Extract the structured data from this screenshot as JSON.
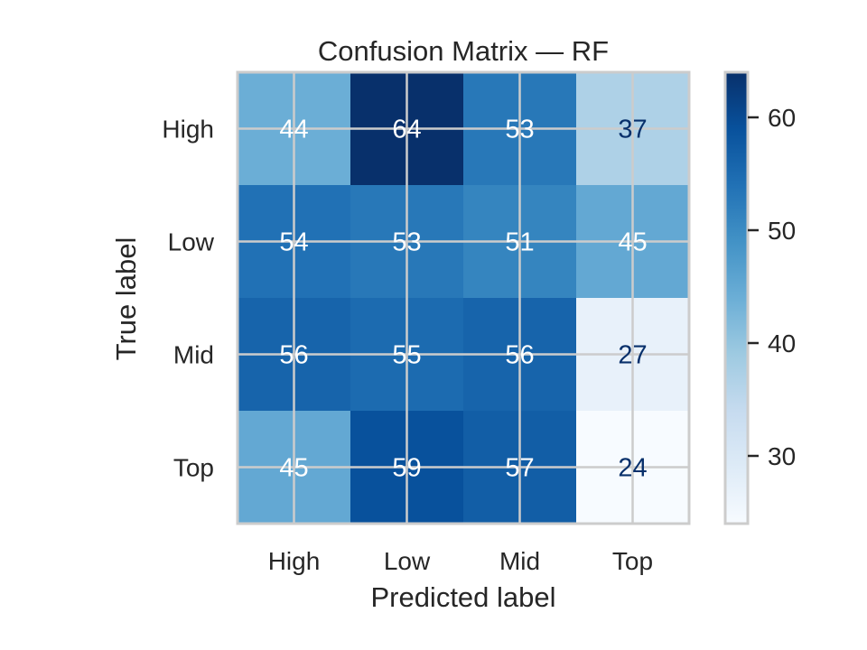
{
  "chart_data": {
    "type": "heatmap",
    "title": "Confusion Matrix — RF",
    "xlabel": "Predicted label",
    "ylabel": "True label",
    "x_categories": [
      "High",
      "Low",
      "Mid",
      "Top"
    ],
    "y_categories": [
      "High",
      "Low",
      "Mid",
      "Top"
    ],
    "values": [
      [
        44,
        64,
        53,
        37
      ],
      [
        54,
        53,
        51,
        45
      ],
      [
        56,
        55,
        56,
        27
      ],
      [
        45,
        59,
        57,
        24
      ]
    ],
    "colormap": "Blues",
    "colorbar": {
      "range": [
        24,
        64
      ],
      "ticks": [
        30,
        40,
        50,
        60
      ]
    },
    "grid": true,
    "colors": {
      "cmap_low": "#f7fbff",
      "cmap_high": "#08306b",
      "text_dark": "#08306b",
      "text_light": "#ffffff"
    }
  }
}
